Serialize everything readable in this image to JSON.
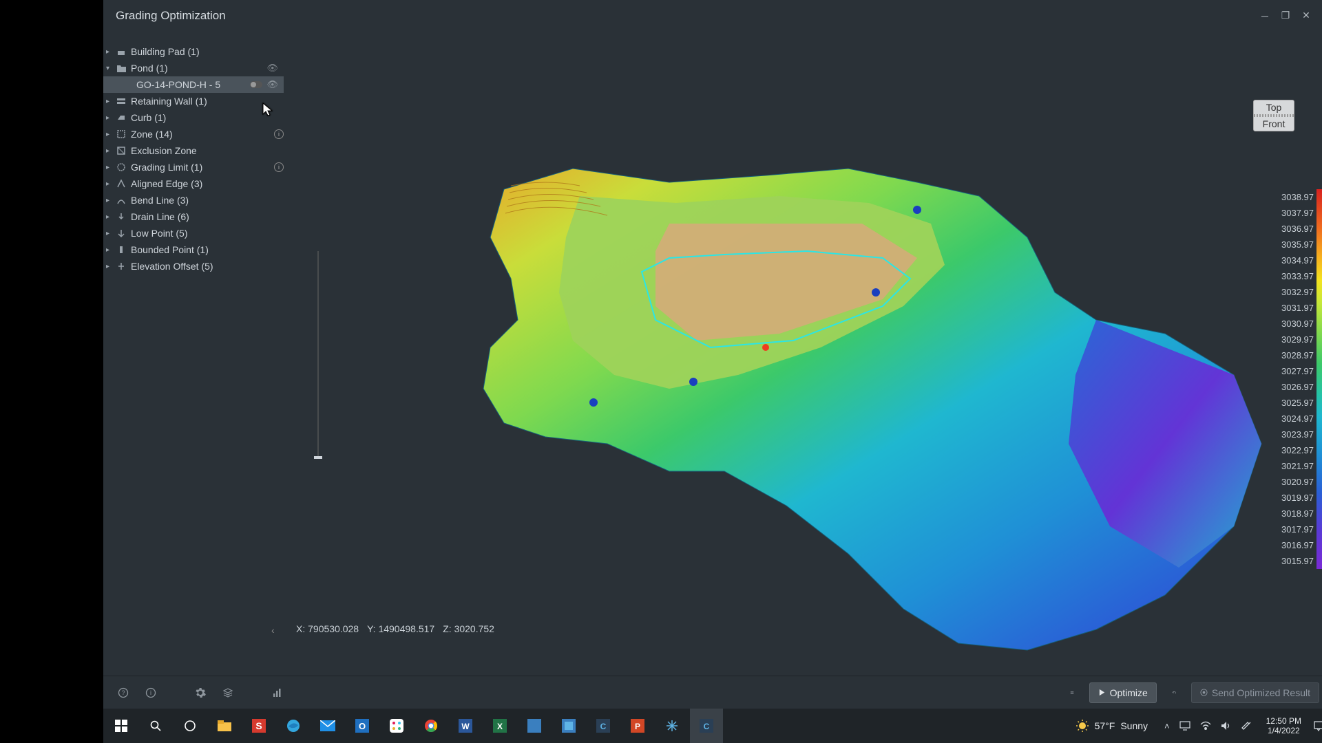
{
  "window": {
    "title": "Grading Optimization"
  },
  "tree": {
    "items": [
      {
        "label": "Building Pad (1)",
        "caret": "▸",
        "icon": "pad"
      },
      {
        "label": "Pond (1)",
        "caret": "▾",
        "icon": "folder",
        "vis_off": true
      },
      {
        "label": "GO-14-POND-H - 5",
        "child": true,
        "toggle": true,
        "vis_off": true
      },
      {
        "label": "Retaining Wall (1)",
        "caret": "▸",
        "icon": "wall"
      },
      {
        "label": "Curb (1)",
        "caret": "▸",
        "icon": "curb"
      },
      {
        "label": "Zone (14)",
        "caret": "▸",
        "icon": "zone",
        "info": true
      },
      {
        "label": "Exclusion Zone",
        "caret": "▸",
        "icon": "exclzone"
      },
      {
        "label": "Grading Limit (1)",
        "caret": "▸",
        "icon": "limit",
        "info": true
      },
      {
        "label": "Aligned Edge (3)",
        "caret": "▸",
        "icon": "edge"
      },
      {
        "label": "Bend Line (3)",
        "caret": "▸",
        "icon": "bend"
      },
      {
        "label": "Drain Line (6)",
        "caret": "▸",
        "icon": "drain"
      },
      {
        "label": "Low Point (5)",
        "caret": "▸",
        "icon": "lowpt"
      },
      {
        "label": "Bounded Point (1)",
        "caret": "▸",
        "icon": "bndpt"
      },
      {
        "label": "Elevation Offset (5)",
        "caret": "▸",
        "icon": "elev"
      }
    ]
  },
  "viewcube": {
    "top": "Top",
    "front": "Front"
  },
  "coords": {
    "x_label": "X:",
    "x": "790530.028",
    "y_label": "Y:",
    "y": "1490498.517",
    "z_label": "Z:",
    "z": "3020.752"
  },
  "legend": {
    "values": [
      "3038.97",
      "3037.97",
      "3036.97",
      "3035.97",
      "3034.97",
      "3033.97",
      "3032.97",
      "3031.97",
      "3030.97",
      "3029.97",
      "3028.97",
      "3027.97",
      "3026.97",
      "3025.97",
      "3024.97",
      "3023.97",
      "3022.97",
      "3021.97",
      "3020.97",
      "3019.97",
      "3018.97",
      "3017.97",
      "3016.97",
      "3015.97"
    ],
    "gradient": "linear-gradient(180deg,#d7221f 0%,#ef6a1f 10%,#f6b11f 18%,#f4e31f 24%,#c5e83a 30%,#7fd94f 38%,#3cc96a 46%,#25c3a6 54%,#1fb7d0 60%,#1f90d6 70%,#2a5fd6 80%,#5a3ad6 90%,#7a2ad6 100%)"
  },
  "buttons": {
    "optimize": "Optimize",
    "send": "Send Optimized Result"
  },
  "taskbar": {
    "weather_temp": "57°F",
    "weather_cond": "Sunny",
    "time": "12:50 PM",
    "date": "1/4/2022"
  },
  "icons": {
    "win": "#ffffff",
    "edge": "#33a6de",
    "outlook": "#1f6fbf",
    "slack": "#ffffff",
    "chrome": "#ea4335",
    "word": "#2b579a",
    "excel": "#217346",
    "ppt": "#d24726",
    "snowf": "#5fb4e6",
    "c3d": "#5fb4e6",
    "snag": "#d63a2e",
    "teams": "#4e5fbf",
    "file": "#f8c24a"
  }
}
